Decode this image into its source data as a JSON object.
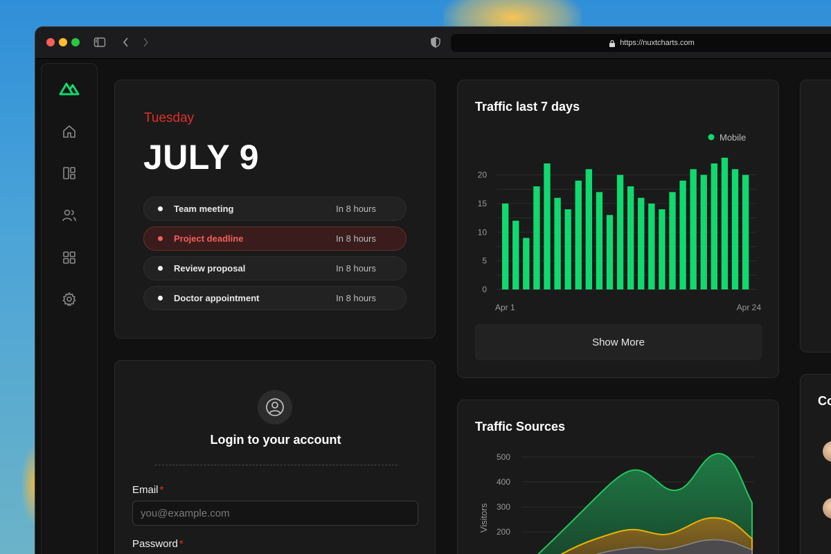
{
  "browser": {
    "url": "https://nuxtcharts.com"
  },
  "sidebar": {
    "items": [
      {
        "icon": "home-icon"
      },
      {
        "icon": "layout-icon"
      },
      {
        "icon": "users-icon"
      },
      {
        "icon": "grid-icon"
      },
      {
        "icon": "settings-icon"
      }
    ]
  },
  "calendar": {
    "day": "Tuesday",
    "date": "JULY 9",
    "events": [
      {
        "title": "Team meeting",
        "time": "In 8 hours",
        "active": false
      },
      {
        "title": "Project deadline",
        "time": "In 8 hours",
        "active": true
      },
      {
        "title": "Review proposal",
        "time": "In 8 hours",
        "active": false
      },
      {
        "title": "Doctor appointment",
        "time": "In 8 hours",
        "active": false
      }
    ]
  },
  "traffic": {
    "title": "Traffic last 7 days",
    "show_more": "Show More"
  },
  "sources": {
    "title": "Traffic Sources"
  },
  "login": {
    "title": "Login to your account",
    "email_label": "Email",
    "email_placeholder": "you@example.com",
    "password_label": "Password",
    "required_mark": "*"
  },
  "contacts": {
    "title_partial": "Co"
  },
  "colors": {
    "accent": "#10d96e",
    "danger": "#e0302a"
  },
  "chart_data": [
    {
      "type": "bar",
      "title": "Traffic last 7 days",
      "series": [
        {
          "name": "Mobile",
          "values": [
            15,
            12,
            9,
            18,
            22,
            16,
            14,
            19,
            21,
            17,
            13,
            20,
            18,
            16,
            15,
            14,
            17,
            19,
            21,
            20,
            22,
            23,
            21,
            20
          ]
        }
      ],
      "x_tick_labels": [
        "Apr 1",
        "Apr 24"
      ],
      "y_ticks": [
        0,
        5,
        10,
        15,
        20
      ],
      "ylim": [
        0,
        22
      ],
      "legend": "top-right",
      "grid": true
    },
    {
      "type": "area",
      "title": "Traffic Sources",
      "ylabel": "Visitors",
      "y_ticks": [
        200,
        300,
        400,
        500
      ],
      "grid": true
    }
  ]
}
